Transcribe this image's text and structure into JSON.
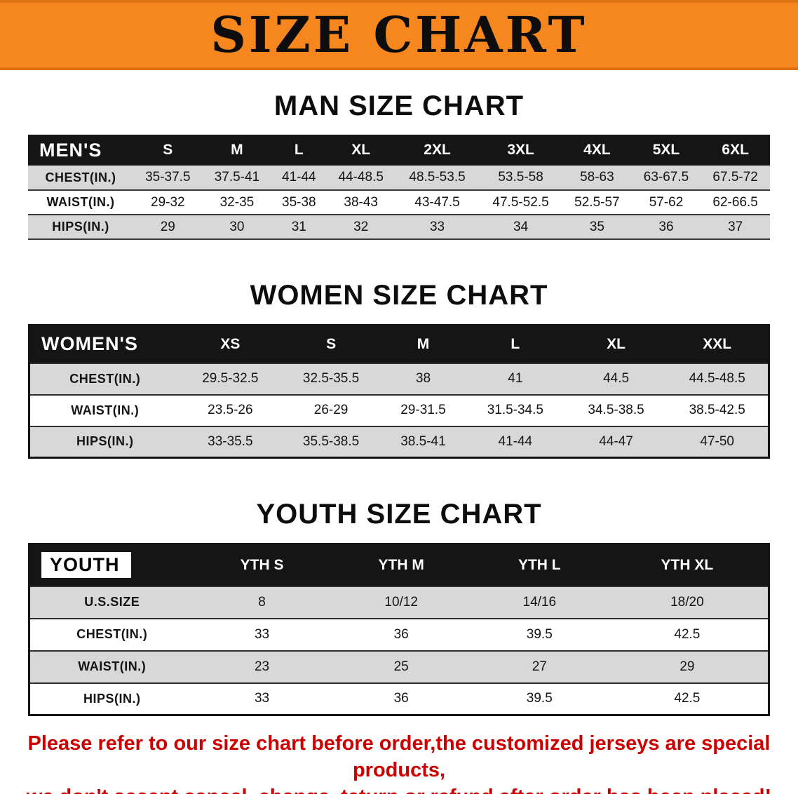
{
  "banner": {
    "title": "SIZE CHART"
  },
  "colors": {
    "banner_bg": "#f6871f",
    "banner_edge": "#de7110",
    "table_header_bg": "#151515",
    "shaded_row": "#d8d8d8",
    "notice_red": "#cc0000"
  },
  "sections": [
    {
      "heading": "MAN SIZE CHART",
      "table": {
        "label": "MEN'S",
        "columns": [
          "S",
          "M",
          "L",
          "XL",
          "2XL",
          "3XL",
          "4XL",
          "5XL",
          "6XL"
        ],
        "rows": [
          {
            "label": "CHEST(IN.)",
            "values": [
              "35-37.5",
              "37.5-41",
              "41-44",
              "44-48.5",
              "48.5-53.5",
              "53.5-58",
              "58-63",
              "63-67.5",
              "67.5-72"
            ]
          },
          {
            "label": "WAIST(IN.)",
            "values": [
              "29-32",
              "32-35",
              "35-38",
              "38-43",
              "43-47.5",
              "47.5-52.5",
              "52.5-57",
              "57-62",
              "62-66.5"
            ]
          },
          {
            "label": "HIPS(IN.)",
            "values": [
              "29",
              "30",
              "31",
              "32",
              "33",
              "34",
              "35",
              "36",
              "37"
            ]
          }
        ]
      }
    },
    {
      "heading": "WOMEN SIZE CHART",
      "table": {
        "label": "WOMEN'S",
        "columns": [
          "XS",
          "S",
          "M",
          "L",
          "XL",
          "XXL"
        ],
        "rows": [
          {
            "label": "CHEST(IN.)",
            "values": [
              "29.5-32.5",
              "32.5-35.5",
              "38",
              "41",
              "44.5",
              "44.5-48.5"
            ]
          },
          {
            "label": "WAIST(IN.)",
            "values": [
              "23.5-26",
              "26-29",
              "29-31.5",
              "31.5-34.5",
              "34.5-38.5",
              "38.5-42.5"
            ]
          },
          {
            "label": "HIPS(IN.)",
            "values": [
              "33-35.5",
              "35.5-38.5",
              "38.5-41",
              "41-44",
              "44-47",
              "47-50"
            ]
          }
        ]
      }
    },
    {
      "heading": "YOUTH SIZE CHART",
      "table": {
        "label": "YOUTH",
        "columns": [
          "YTH S",
          "YTH M",
          "YTH L",
          "YTH XL"
        ],
        "rows": [
          {
            "label": "U.S.SIZE",
            "values": [
              "8",
              "10/12",
              "14/16",
              "18/20"
            ]
          },
          {
            "label": "CHEST(IN.)",
            "values": [
              "33",
              "36",
              "39.5",
              "42.5"
            ]
          },
          {
            "label": "WAIST(IN.)",
            "values": [
              "23",
              "25",
              "27",
              "29"
            ]
          },
          {
            "label": "HIPS(IN.)",
            "values": [
              "33",
              "36",
              "39.5",
              "42.5"
            ]
          }
        ]
      }
    }
  ],
  "footer": {
    "lines": [
      "Please refer to our size chart before order,the customized jerseys are special products,",
      "we don't accept cancel, change, teturn or refund after order has been placed!"
    ]
  }
}
